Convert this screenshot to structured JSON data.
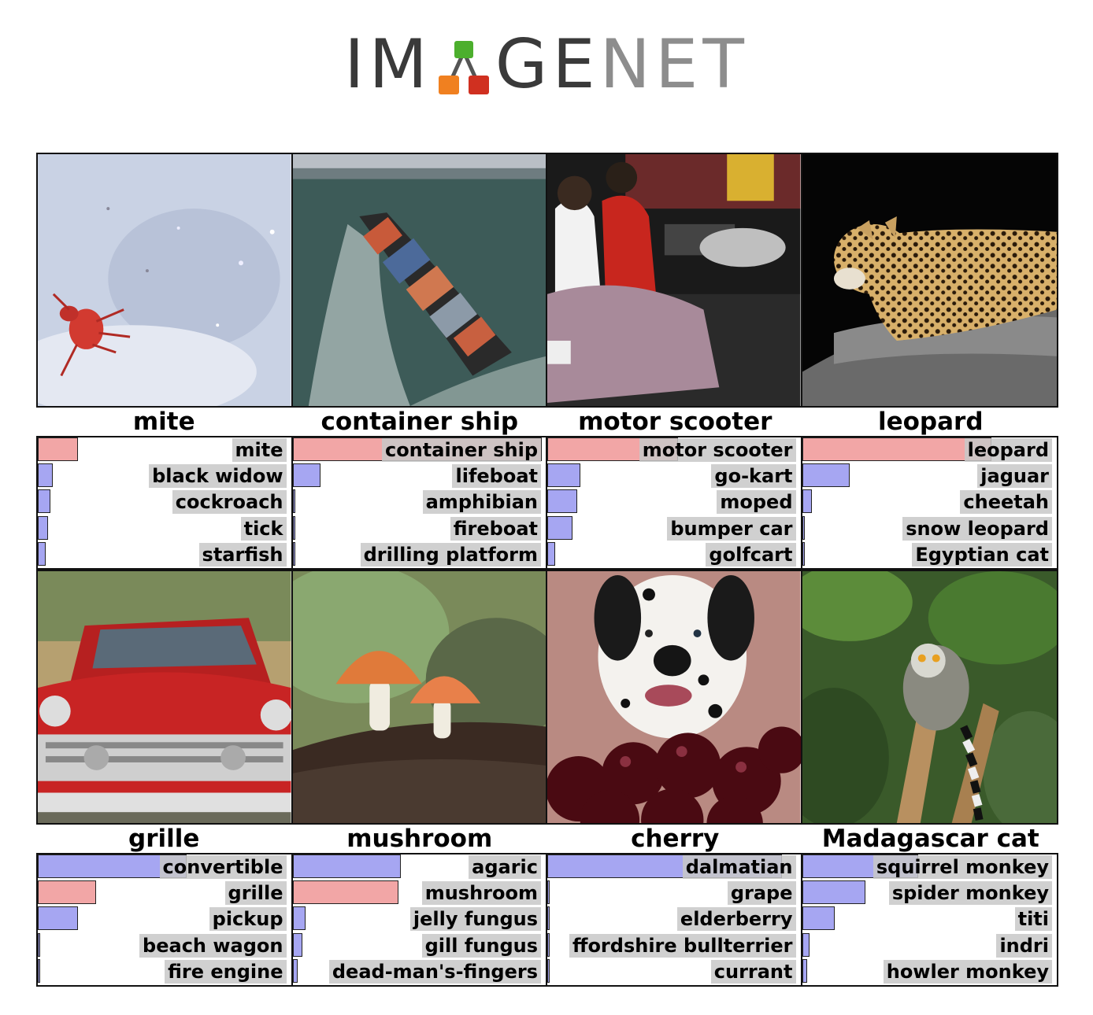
{
  "logo": {
    "part1": "IM",
    "part2": "GE",
    "part3": "NET"
  },
  "colors": {
    "correct_bar": "#f2a6a6",
    "other_bar": "#a6a6f2",
    "label_bg": "#c8c8c8",
    "logo_green": "#4caf2d",
    "logo_orange": "#f08020",
    "logo_red": "#d03020"
  },
  "rows": [
    {
      "examples": [
        {
          "label": "mite",
          "image": "red-mite-on-white-surface",
          "predictions": [
            {
              "name": "mite",
              "score": 0.16,
              "correct": true
            },
            {
              "name": "black widow",
              "score": 0.06,
              "correct": false
            },
            {
              "name": "cockroach",
              "score": 0.05,
              "correct": false
            },
            {
              "name": "tick",
              "score": 0.04,
              "correct": false
            },
            {
              "name": "starfish",
              "score": 0.03,
              "correct": false
            }
          ]
        },
        {
          "label": "container ship",
          "image": "cargo-ship-at-sea",
          "predictions": [
            {
              "name": "container ship",
              "score": 0.99,
              "correct": true
            },
            {
              "name": "lifeboat",
              "score": 0.11,
              "correct": false
            },
            {
              "name": "amphibian",
              "score": 0.01,
              "correct": false
            },
            {
              "name": "fireboat",
              "score": 0.01,
              "correct": false
            },
            {
              "name": "drilling platform",
              "score": 0.01,
              "correct": false
            }
          ]
        },
        {
          "label": "motor scooter",
          "image": "couple-riding-scooter-at-night",
          "predictions": [
            {
              "name": "motor scooter",
              "score": 0.52,
              "correct": true
            },
            {
              "name": "go-kart",
              "score": 0.13,
              "correct": false
            },
            {
              "name": "moped",
              "score": 0.12,
              "correct": false
            },
            {
              "name": "bumper car",
              "score": 0.1,
              "correct": false
            },
            {
              "name": "golfcart",
              "score": 0.03,
              "correct": false
            }
          ]
        },
        {
          "label": "leopard",
          "image": "leopard-on-tree",
          "predictions": [
            {
              "name": "leopard",
              "score": 0.75,
              "correct": true
            },
            {
              "name": "jaguar",
              "score": 0.19,
              "correct": false
            },
            {
              "name": "cheetah",
              "score": 0.04,
              "correct": false
            },
            {
              "name": "snow leopard",
              "score": 0.01,
              "correct": false
            },
            {
              "name": "Egyptian cat",
              "score": 0.01,
              "correct": false
            }
          ]
        }
      ]
    },
    {
      "examples": [
        {
          "label": "grille",
          "image": "red-vintage-convertible",
          "predictions": [
            {
              "name": "convertible",
              "score": 0.59,
              "correct": false
            },
            {
              "name": "grille",
              "score": 0.23,
              "correct": true
            },
            {
              "name": "pickup",
              "score": 0.16,
              "correct": false
            },
            {
              "name": "beach wagon",
              "score": 0.01,
              "correct": false
            },
            {
              "name": "fire engine",
              "score": 0.01,
              "correct": false
            }
          ]
        },
        {
          "label": "mushroom",
          "image": "two-mushrooms-on-log",
          "predictions": [
            {
              "name": "agaric",
              "score": 0.43,
              "correct": false
            },
            {
              "name": "mushroom",
              "score": 0.42,
              "correct": true
            },
            {
              "name": "jelly fungus",
              "score": 0.05,
              "correct": false
            },
            {
              "name": "gill fungus",
              "score": 0.04,
              "correct": false
            },
            {
              "name": "dead-man's-fingers",
              "score": 0.02,
              "correct": false
            }
          ]
        },
        {
          "label": "cherry",
          "image": "dalmatian-behind-cherries",
          "predictions": [
            {
              "name": "dalmatian",
              "score": 0.93,
              "correct": false
            },
            {
              "name": "grape",
              "score": 0.01,
              "correct": false
            },
            {
              "name": "elderberry",
              "score": 0.01,
              "correct": false
            },
            {
              "name": "ffordshire bullterrier",
              "score": 0.0,
              "correct": false
            },
            {
              "name": "currant",
              "score": 0.0,
              "correct": false
            }
          ]
        },
        {
          "label": "Madagascar cat",
          "image": "lemur-in-tree",
          "predictions": [
            {
              "name": "squirrel monkey",
              "score": 0.46,
              "correct": false
            },
            {
              "name": "spider monkey",
              "score": 0.25,
              "correct": false
            },
            {
              "name": "titi",
              "score": 0.13,
              "correct": false
            },
            {
              "name": "indri",
              "score": 0.03,
              "correct": false
            },
            {
              "name": "howler monkey",
              "score": 0.02,
              "correct": false
            }
          ]
        }
      ]
    }
  ]
}
